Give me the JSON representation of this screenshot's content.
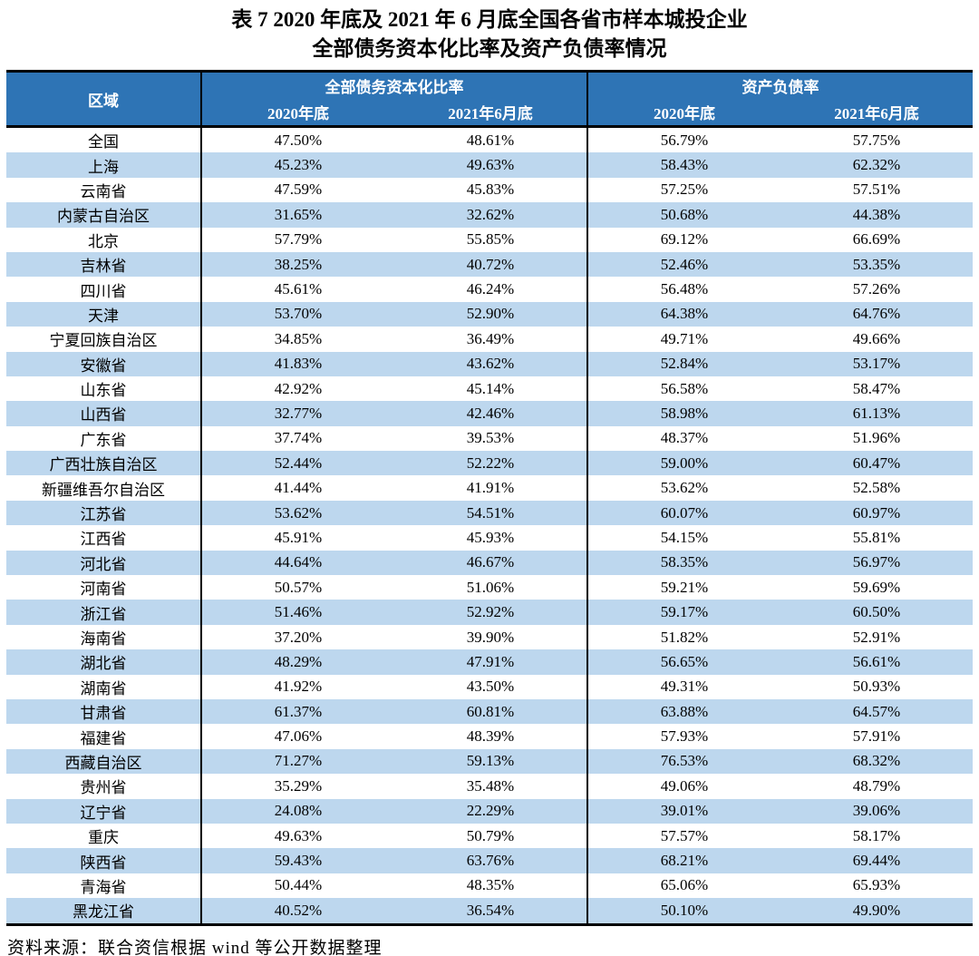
{
  "title": {
    "line1": "表 7  2020 年底及 2021 年 6 月底全国各省市样本城投企业",
    "line2": "全部债务资本化比率及资产负债率情况"
  },
  "table": {
    "header": {
      "region": "区域",
      "group1": "全部债务资本化比率",
      "group2": "资产负债率",
      "sub": [
        "2020年底",
        "2021年6月底",
        "2020年底",
        "2021年6月底"
      ]
    },
    "rows": [
      {
        "region": "全国",
        "values": [
          "47.50%",
          "48.61%",
          "56.79%",
          "57.75%"
        ]
      },
      {
        "region": "上海",
        "values": [
          "45.23%",
          "49.63%",
          "58.43%",
          "62.32%"
        ]
      },
      {
        "region": "云南省",
        "values": [
          "47.59%",
          "45.83%",
          "57.25%",
          "57.51%"
        ]
      },
      {
        "region": "内蒙古自治区",
        "values": [
          "31.65%",
          "32.62%",
          "50.68%",
          "44.38%"
        ]
      },
      {
        "region": "北京",
        "values": [
          "57.79%",
          "55.85%",
          "69.12%",
          "66.69%"
        ]
      },
      {
        "region": "吉林省",
        "values": [
          "38.25%",
          "40.72%",
          "52.46%",
          "53.35%"
        ]
      },
      {
        "region": "四川省",
        "values": [
          "45.61%",
          "46.24%",
          "56.48%",
          "57.26%"
        ]
      },
      {
        "region": "天津",
        "values": [
          "53.70%",
          "52.90%",
          "64.38%",
          "64.76%"
        ]
      },
      {
        "region": "宁夏回族自治区",
        "values": [
          "34.85%",
          "36.49%",
          "49.71%",
          "49.66%"
        ]
      },
      {
        "region": "安徽省",
        "values": [
          "41.83%",
          "43.62%",
          "52.84%",
          "53.17%"
        ]
      },
      {
        "region": "山东省",
        "values": [
          "42.92%",
          "45.14%",
          "56.58%",
          "58.47%"
        ]
      },
      {
        "region": "山西省",
        "values": [
          "32.77%",
          "42.46%",
          "58.98%",
          "61.13%"
        ]
      },
      {
        "region": "广东省",
        "values": [
          "37.74%",
          "39.53%",
          "48.37%",
          "51.96%"
        ]
      },
      {
        "region": "广西壮族自治区",
        "values": [
          "52.44%",
          "52.22%",
          "59.00%",
          "60.47%"
        ]
      },
      {
        "region": "新疆维吾尔自治区",
        "values": [
          "41.44%",
          "41.91%",
          "53.62%",
          "52.58%"
        ]
      },
      {
        "region": "江苏省",
        "values": [
          "53.62%",
          "54.51%",
          "60.07%",
          "60.97%"
        ]
      },
      {
        "region": "江西省",
        "values": [
          "45.91%",
          "45.93%",
          "54.15%",
          "55.81%"
        ]
      },
      {
        "region": "河北省",
        "values": [
          "44.64%",
          "46.67%",
          "58.35%",
          "56.97%"
        ]
      },
      {
        "region": "河南省",
        "values": [
          "50.57%",
          "51.06%",
          "59.21%",
          "59.69%"
        ]
      },
      {
        "region": "浙江省",
        "values": [
          "51.46%",
          "52.92%",
          "59.17%",
          "60.50%"
        ]
      },
      {
        "region": "海南省",
        "values": [
          "37.20%",
          "39.90%",
          "51.82%",
          "52.91%"
        ]
      },
      {
        "region": "湖北省",
        "values": [
          "48.29%",
          "47.91%",
          "56.65%",
          "56.61%"
        ]
      },
      {
        "region": "湖南省",
        "values": [
          "41.92%",
          "43.50%",
          "49.31%",
          "50.93%"
        ]
      },
      {
        "region": "甘肃省",
        "values": [
          "61.37%",
          "60.81%",
          "63.88%",
          "64.57%"
        ]
      },
      {
        "region": "福建省",
        "values": [
          "47.06%",
          "48.39%",
          "57.93%",
          "57.91%"
        ]
      },
      {
        "region": "西藏自治区",
        "values": [
          "71.27%",
          "59.13%",
          "76.53%",
          "68.32%"
        ]
      },
      {
        "region": "贵州省",
        "values": [
          "35.29%",
          "35.48%",
          "49.06%",
          "48.79%"
        ]
      },
      {
        "region": "辽宁省",
        "values": [
          "24.08%",
          "22.29%",
          "39.01%",
          "39.06%"
        ]
      },
      {
        "region": "重庆",
        "values": [
          "49.63%",
          "50.79%",
          "57.57%",
          "58.17%"
        ]
      },
      {
        "region": "陕西省",
        "values": [
          "59.43%",
          "63.76%",
          "68.21%",
          "69.44%"
        ]
      },
      {
        "region": "青海省",
        "values": [
          "50.44%",
          "48.35%",
          "65.06%",
          "65.93%"
        ]
      },
      {
        "region": "黑龙江省",
        "values": [
          "40.52%",
          "36.54%",
          "50.10%",
          "49.90%"
        ]
      }
    ]
  },
  "source_note": "资料来源：联合资信根据 wind 等公开数据整理",
  "colors": {
    "header_bg": "#2E74B5",
    "stripe_bg": "#BDD7EE",
    "header_text": "#FFFFFF",
    "body_text": "#000000",
    "border": "#000000"
  },
  "chart_data": {
    "type": "table",
    "title": "表 7 2020 年底及 2021 年 6 月底全国各省市样本城投企业全部债务资本化比率及资产负债率情况",
    "columns": [
      "区域",
      "全部债务资本化比率 2020年底",
      "全部债务资本化比率 2021年6月底",
      "资产负债率 2020年底",
      "资产负债率 2021年6月底"
    ],
    "rows": [
      [
        "全国",
        47.5,
        48.61,
        56.79,
        57.75
      ],
      [
        "上海",
        45.23,
        49.63,
        58.43,
        62.32
      ],
      [
        "云南省",
        47.59,
        45.83,
        57.25,
        57.51
      ],
      [
        "内蒙古自治区",
        31.65,
        32.62,
        50.68,
        44.38
      ],
      [
        "北京",
        57.79,
        55.85,
        69.12,
        66.69
      ],
      [
        "吉林省",
        38.25,
        40.72,
        52.46,
        53.35
      ],
      [
        "四川省",
        45.61,
        46.24,
        56.48,
        57.26
      ],
      [
        "天津",
        53.7,
        52.9,
        64.38,
        64.76
      ],
      [
        "宁夏回族自治区",
        34.85,
        36.49,
        49.71,
        49.66
      ],
      [
        "安徽省",
        41.83,
        43.62,
        52.84,
        53.17
      ],
      [
        "山东省",
        42.92,
        45.14,
        56.58,
        58.47
      ],
      [
        "山西省",
        32.77,
        42.46,
        58.98,
        61.13
      ],
      [
        "广东省",
        37.74,
        39.53,
        48.37,
        51.96
      ],
      [
        "广西壮族自治区",
        52.44,
        52.22,
        59.0,
        60.47
      ],
      [
        "新疆维吾尔自治区",
        41.44,
        41.91,
        53.62,
        52.58
      ],
      [
        "江苏省",
        53.62,
        54.51,
        60.07,
        60.97
      ],
      [
        "江西省",
        45.91,
        45.93,
        54.15,
        55.81
      ],
      [
        "河北省",
        44.64,
        46.67,
        58.35,
        56.97
      ],
      [
        "河南省",
        50.57,
        51.06,
        59.21,
        59.69
      ],
      [
        "浙江省",
        51.46,
        52.92,
        59.17,
        60.5
      ],
      [
        "海南省",
        37.2,
        39.9,
        51.82,
        52.91
      ],
      [
        "湖北省",
        48.29,
        47.91,
        56.65,
        56.61
      ],
      [
        "湖南省",
        41.92,
        43.5,
        49.31,
        50.93
      ],
      [
        "甘肃省",
        61.37,
        60.81,
        63.88,
        64.57
      ],
      [
        "福建省",
        47.06,
        48.39,
        57.93,
        57.91
      ],
      [
        "西藏自治区",
        71.27,
        59.13,
        76.53,
        68.32
      ],
      [
        "贵州省",
        35.29,
        35.48,
        49.06,
        48.79
      ],
      [
        "辽宁省",
        24.08,
        22.29,
        39.01,
        39.06
      ],
      [
        "重庆",
        49.63,
        50.79,
        57.57,
        58.17
      ],
      [
        "陕西省",
        59.43,
        63.76,
        68.21,
        69.44
      ],
      [
        "青海省",
        50.44,
        48.35,
        65.06,
        65.93
      ],
      [
        "黑龙江省",
        40.52,
        36.54,
        50.1,
        49.9
      ]
    ]
  }
}
